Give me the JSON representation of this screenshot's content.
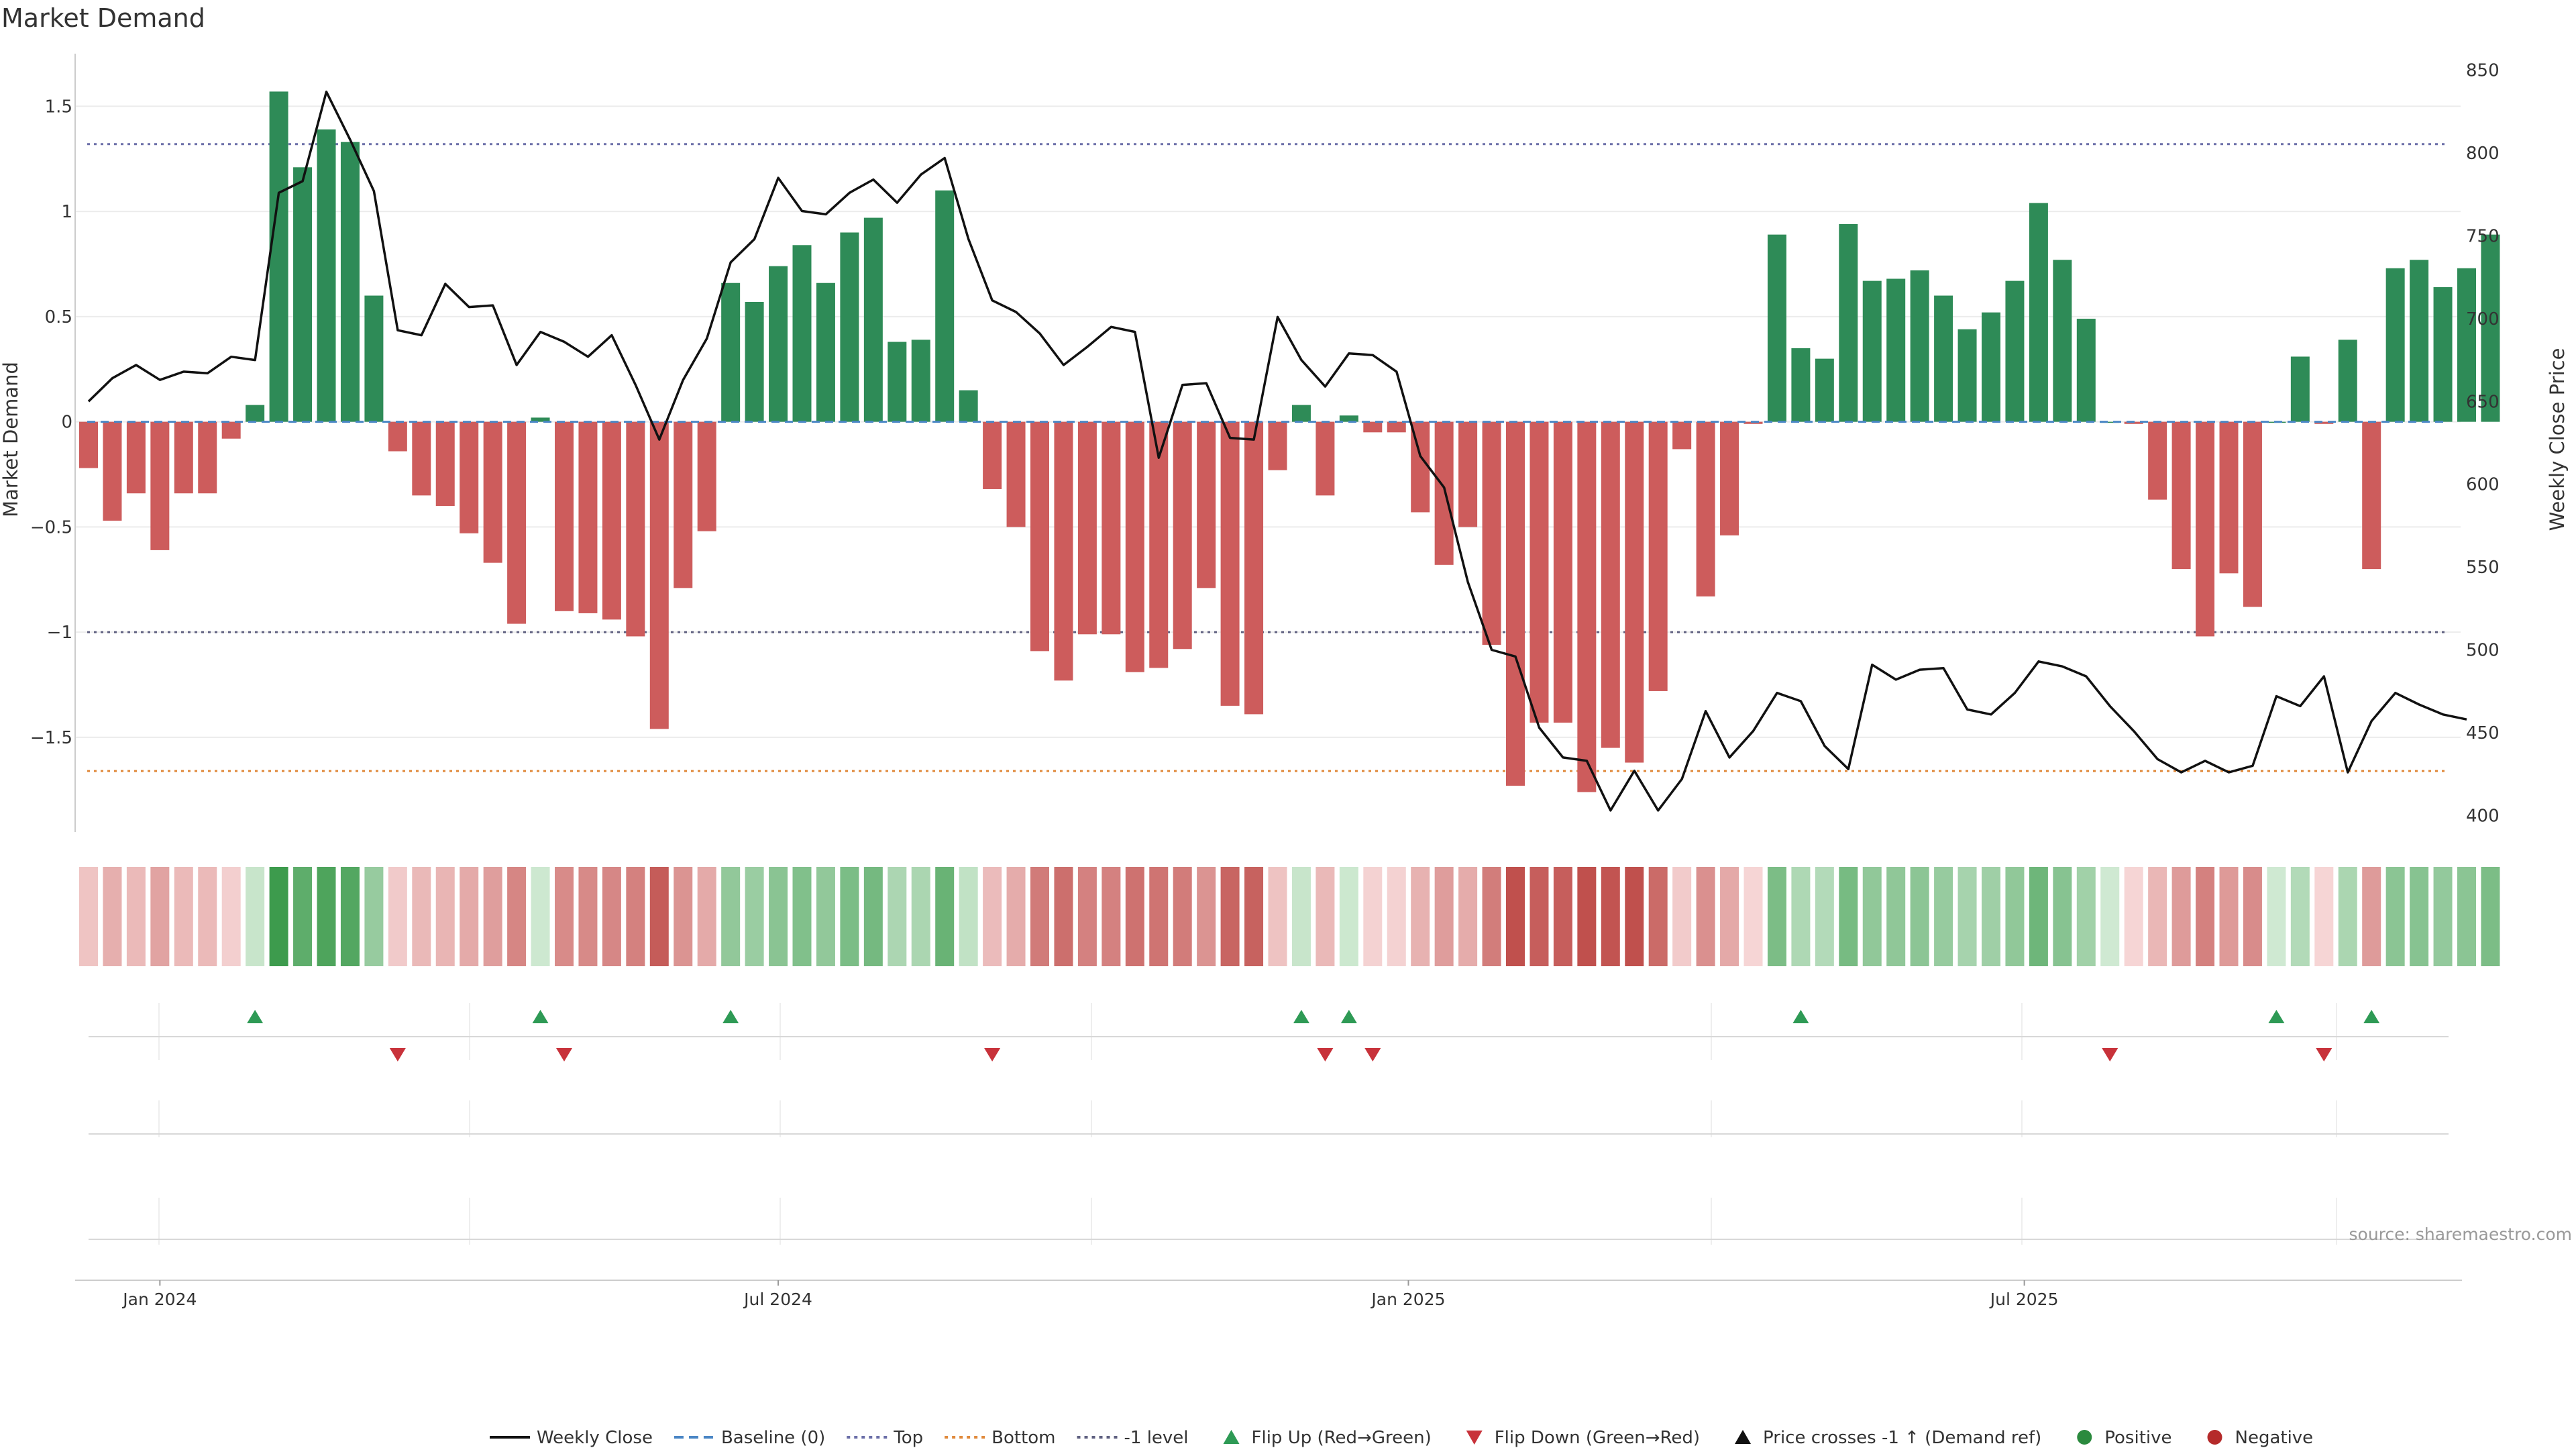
{
  "chart_data": {
    "type": "bar",
    "title": "Market Demand",
    "ylabel_left": "Market Demand",
    "ylabel_right": "Weekly Close Price",
    "ylim_left": [
      -1.95,
      1.75
    ],
    "ylim_right": [
      390,
      860
    ],
    "left_ticks": [
      {
        "v": 1.5,
        "label": "1.5"
      },
      {
        "v": 1,
        "label": "1"
      },
      {
        "v": 0.5,
        "label": "0.5"
      },
      {
        "v": 0,
        "label": "0"
      },
      {
        "v": -0.5,
        "label": "−0.5"
      },
      {
        "v": -1,
        "label": "−1"
      },
      {
        "v": -1.5,
        "label": "−1.5"
      }
    ],
    "right_ticks": [
      "850",
      "800",
      "750",
      "700",
      "650",
      "600",
      "550",
      "500",
      "450",
      "400"
    ],
    "reference_lines": {
      "top": 1.32,
      "minus_one": -1.0,
      "bottom": -1.66,
      "baseline": 0
    },
    "x_ticks": [
      {
        "index": 3,
        "label": "Jan 2024"
      },
      {
        "index": 29,
        "label": "Jul 2024"
      },
      {
        "index": 55.5,
        "label": "Jan 2025"
      },
      {
        "index": 81.4,
        "label": "Jul 2025"
      }
    ],
    "series": [
      {
        "name": "Market Demand",
        "values": [
          -0.22,
          -0.47,
          -0.34,
          -0.61,
          -0.34,
          -0.34,
          -0.08,
          0.08,
          1.57,
          1.21,
          1.39,
          1.33,
          0.6,
          -0.14,
          -0.35,
          -0.4,
          -0.53,
          -0.67,
          -0.96,
          0.02,
          -0.9,
          -0.91,
          -0.94,
          -1.02,
          -1.46,
          -0.79,
          -0.52,
          0.66,
          0.57,
          0.74,
          0.84,
          0.66,
          0.9,
          0.97,
          0.38,
          0.39,
          1.1,
          0.15,
          -0.32,
          -0.5,
          -1.09,
          -1.23,
          -1.01,
          -1.01,
          -1.19,
          -1.17,
          -1.08,
          -0.79,
          -1.35,
          -1.39,
          -0.23,
          0.08,
          -0.35,
          0.03,
          -0.05,
          -0.05,
          -0.43,
          -0.68,
          -0.5,
          -1.06,
          -1.73,
          -1.43,
          -1.43,
          -1.76,
          -1.55,
          -1.62,
          -1.28,
          -0.13,
          -0.83,
          -0.54,
          -0.01,
          0.89,
          0.35,
          0.3,
          0.94,
          0.67,
          0.68,
          0.72,
          0.6,
          0.44,
          0.52,
          0.67,
          1.04,
          0.77,
          0.49,
          0.0,
          -0.01,
          -0.37,
          -0.7,
          -1.02,
          -0.72,
          -0.88,
          0.0,
          0.31,
          -0.01,
          0.39,
          -0.7,
          0.73,
          0.77,
          0.64,
          0.73,
          0.89
        ]
      },
      {
        "name": "Weekly Close",
        "values": [
          650,
          664,
          672,
          663,
          668,
          667,
          677,
          675,
          776,
          783,
          837,
          808,
          777,
          693,
          690,
          721,
          707,
          708,
          672,
          692,
          686,
          677,
          690,
          660,
          627,
          663,
          688,
          734,
          748,
          785,
          765,
          763,
          776,
          784,
          770,
          787,
          797,
          748,
          711,
          704,
          691,
          672,
          683,
          695,
          692,
          616,
          660,
          661,
          628,
          627,
          701,
          675,
          659,
          679,
          678,
          668,
          617,
          598,
          541,
          500,
          496,
          453,
          435,
          433,
          403,
          427,
          403,
          422,
          463,
          435,
          451,
          474,
          469,
          442,
          428,
          491,
          482,
          488,
          489,
          464,
          461,
          474,
          493,
          490,
          484,
          466,
          451,
          434,
          426,
          433,
          426,
          430,
          472,
          466,
          484,
          426,
          457,
          474,
          467,
          461,
          458
        ]
      }
    ],
    "signals": {
      "flip_up": [
        7,
        19,
        27,
        51,
        53,
        72,
        92,
        96
      ],
      "flip_down": [
        13,
        20,
        38,
        52,
        54,
        85,
        94
      ]
    },
    "legend": [
      {
        "key": "weekly_close",
        "label": "Weekly Close",
        "style": "line",
        "color": "#111111"
      },
      {
        "key": "baseline",
        "label": "Baseline (0)",
        "style": "dash",
        "color": "#4a86c5"
      },
      {
        "key": "top",
        "label": "Top",
        "style": "dot",
        "color": "#6b6fa8"
      },
      {
        "key": "bottom",
        "label": "Bottom",
        "style": "dot",
        "color": "#e08a3c"
      },
      {
        "key": "minus_one",
        "label": "-1 level",
        "style": "dot",
        "color": "#5f6080"
      },
      {
        "key": "flip_up",
        "label": "Flip Up (Red→Green)",
        "style": "tri-up",
        "color": "#2e9a55"
      },
      {
        "key": "flip_down",
        "label": "Flip Down (Green→Red)",
        "style": "tri-down",
        "color": "#c8323a"
      },
      {
        "key": "cross",
        "label": "Price crosses -1 ↑ (Demand ref)",
        "style": "tri-up",
        "color": "#111111"
      },
      {
        "key": "positive",
        "label": "Positive",
        "style": "dot-fill",
        "color": "#2b8a3e"
      },
      {
        "key": "negative",
        "label": "Negative",
        "style": "dot-fill",
        "color": "#b52a2a"
      }
    ],
    "source": "source: sharemaestro.com",
    "colors": {
      "positive": "#2e8b57",
      "negative": "#cd5c5c",
      "price": "#111111",
      "strip_pos_dark": "#3a9a4a",
      "strip_pos_light": "#cfe9d2",
      "strip_neg_dark": "#c0504d",
      "strip_neg_light": "#f6d6d6",
      "flip_up": "#2e9a55",
      "flip_down": "#c8323a"
    }
  }
}
